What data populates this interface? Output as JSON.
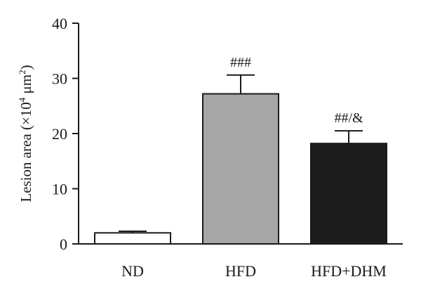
{
  "chart_data": {
    "type": "bar",
    "categories": [
      "ND",
      "HFD",
      "HFD+DHM"
    ],
    "values": [
      2.0,
      27.2,
      18.2
    ],
    "errors": [
      0.3,
      3.4,
      2.3
    ],
    "annotations": [
      "",
      "###",
      "##/&"
    ],
    "colors": [
      "#ffffff",
      "#a6a6a6",
      "#1c1c1c"
    ],
    "ylabel_main": "Lesion area (×10",
    "ylabel_sup1": "4",
    "ylabel_mid": " μm",
    "ylabel_sup2": "2",
    "ylabel_end": ")",
    "ylim": [
      0,
      40
    ],
    "yticks": [
      0,
      10,
      20,
      30,
      40
    ],
    "grid": false
  }
}
